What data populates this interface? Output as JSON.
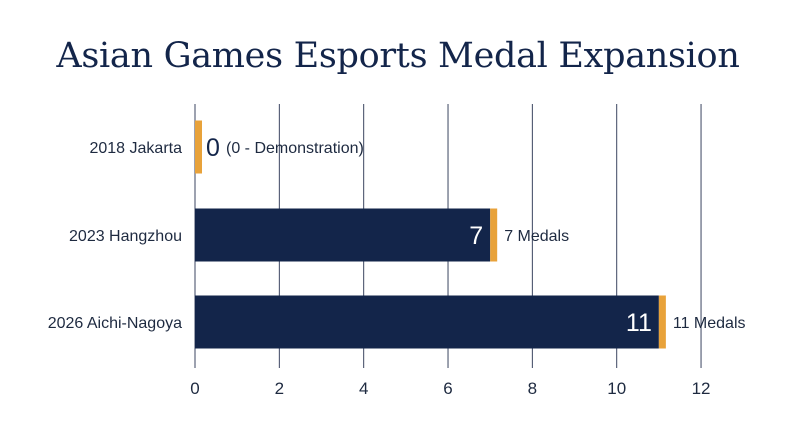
{
  "chart_data": {
    "type": "bar",
    "orientation": "horizontal",
    "title": "Asian Games Esports Medal Expansion",
    "categories": [
      "2018 Jakarta",
      "2023 Hangzhou",
      "2026 Aichi-Nagoya"
    ],
    "values": [
      0,
      7,
      11
    ],
    "bar_value_labels": [
      "0",
      "7",
      "11"
    ],
    "annotations": [
      "(0 - Demonstration)",
      "7 Medals",
      "11 Medals"
    ],
    "xlabel": "",
    "ylabel": "",
    "xlim": [
      0,
      12
    ],
    "xticks": [
      "0",
      "2",
      "4",
      "6",
      "8",
      "10",
      "12"
    ],
    "grid": true,
    "legend": "none",
    "colors": {
      "bar": "#13254a",
      "accent": "#e8a23a",
      "grid": "#3b4560",
      "title": "#13254a"
    }
  }
}
